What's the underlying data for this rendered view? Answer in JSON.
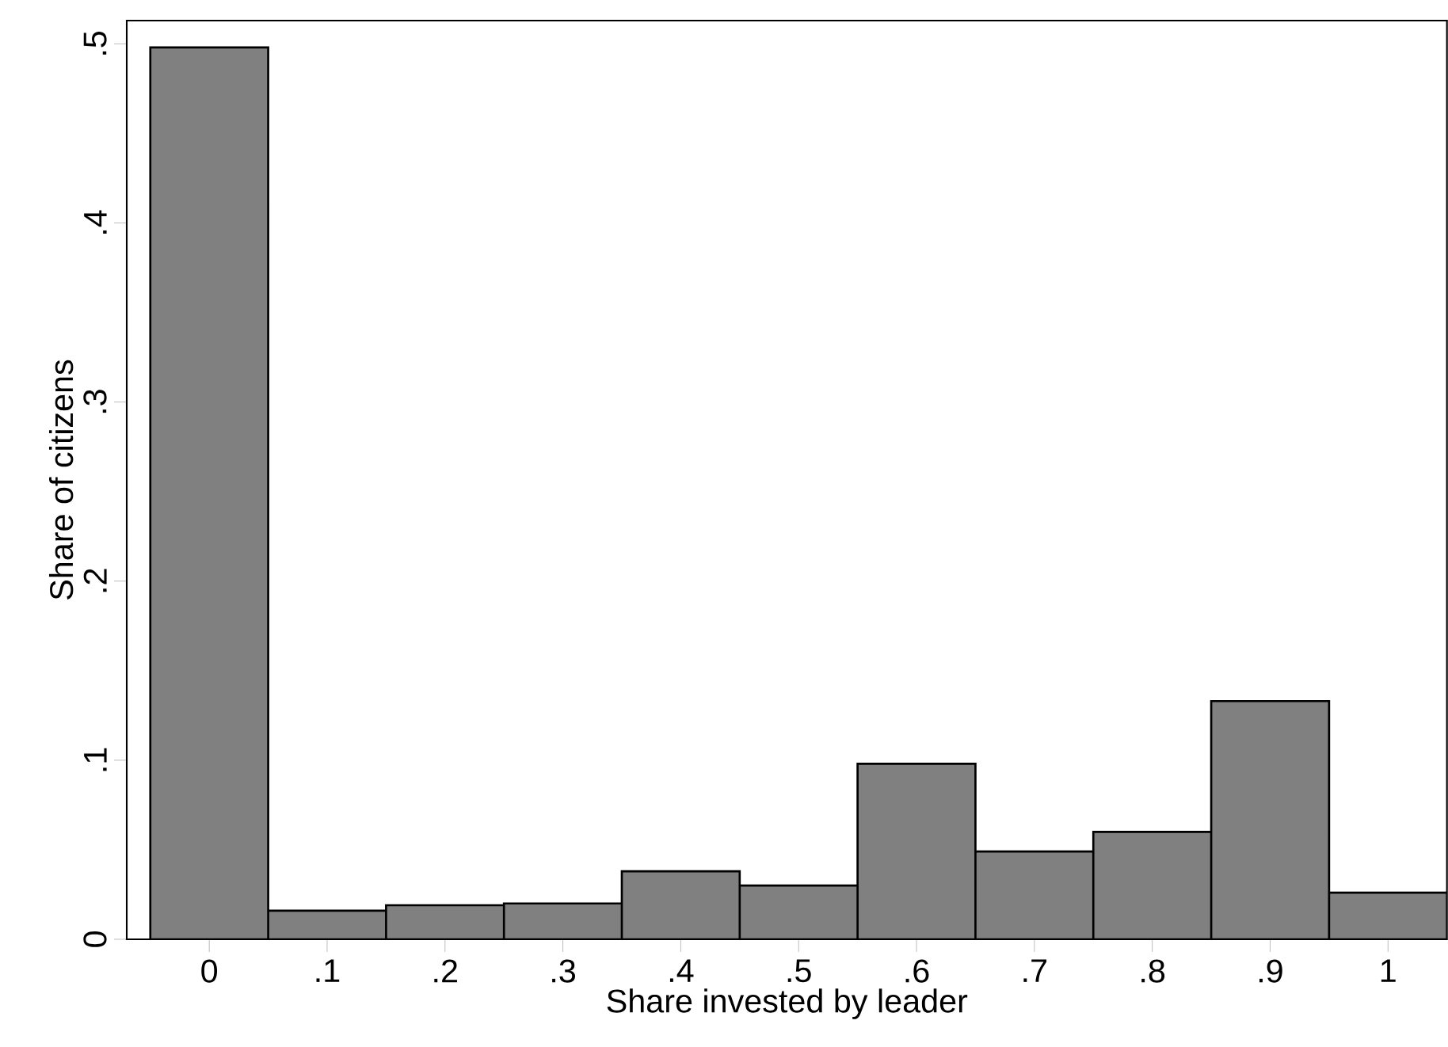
{
  "chart_data": {
    "type": "histogram",
    "xlabel": "Share invested by leader",
    "ylabel": "Share of citizens",
    "bins": [
      -0.05,
      0.05,
      0.15,
      0.25,
      0.35,
      0.45,
      0.55,
      0.65,
      0.75,
      0.85,
      0.95,
      1.05
    ],
    "values": [
      0.498,
      0.016,
      0.019,
      0.02,
      0.038,
      0.03,
      0.098,
      0.049,
      0.06,
      0.133,
      0.026
    ],
    "color": "#808080",
    "xlim": [
      -0.07,
      1.05
    ],
    "ylim": [
      0,
      0.513
    ],
    "xticks": [
      0,
      {
        "value": 0.1,
        "label": ".1"
      },
      {
        "value": 0.2,
        "label": ".2"
      },
      {
        "value": 0.3,
        "label": ".3"
      },
      {
        "value": 0.4,
        "label": ".4"
      },
      {
        "value": 0.5,
        "label": ".5"
      },
      {
        "value": 0.6,
        "label": ".6"
      },
      {
        "value": 0.7,
        "label": ".7"
      },
      {
        "value": 0.8,
        "label": ".8"
      },
      {
        "value": 0.9,
        "label": ".9"
      },
      1
    ],
    "yticks": [
      0,
      {
        "value": 0.1,
        "label": ".1"
      },
      {
        "value": 0.2,
        "label": ".2"
      },
      {
        "value": 0.3,
        "label": ".3"
      },
      {
        "value": 0.4,
        "label": ".4"
      },
      {
        "value": 0.5,
        "label": ".5"
      }
    ],
    "grid": false
  }
}
